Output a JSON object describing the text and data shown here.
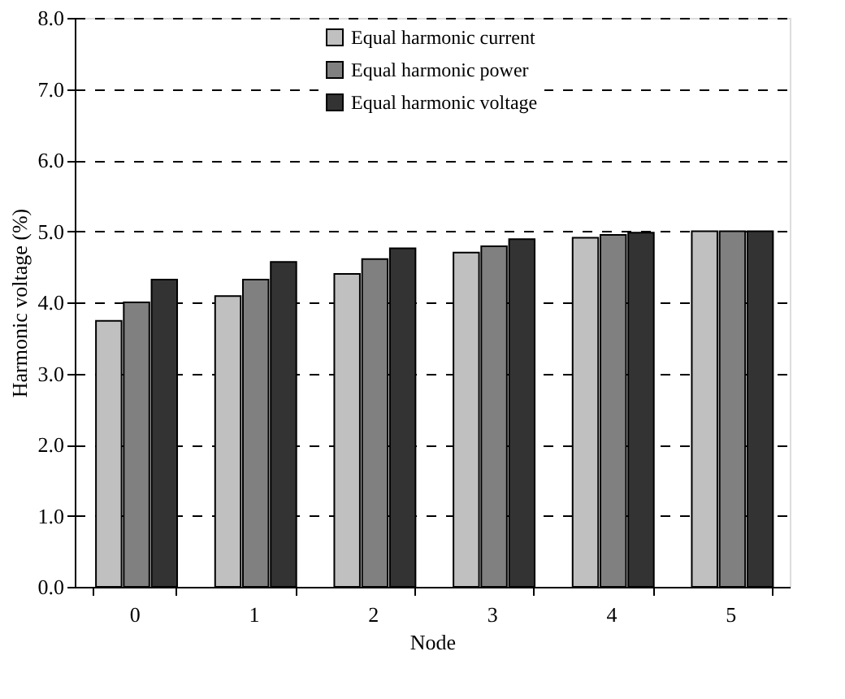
{
  "chart_data": {
    "type": "bar",
    "xlabel": "Node",
    "ylabel": "Harmonic voltage (%)",
    "categories": [
      "0",
      "1",
      "2",
      "3",
      "4",
      "5"
    ],
    "series": [
      {
        "name": "Equal harmonic current",
        "color": "#c0c0c0",
        "values": [
          3.74,
          4.09,
          4.4,
          4.7,
          4.91,
          5.0
        ]
      },
      {
        "name": "Equal harmonic power",
        "color": "#808080",
        "values": [
          4.0,
          4.32,
          4.61,
          4.79,
          4.95,
          5.0
        ]
      },
      {
        "name": "Equal harmonic voltage",
        "color": "#333333",
        "values": [
          4.32,
          4.57,
          4.76,
          4.89,
          4.98,
          5.0
        ]
      }
    ],
    "ylim": [
      0,
      8
    ],
    "yticks": [
      {
        "value": 0,
        "label": "0.0"
      },
      {
        "value": 1,
        "label": "1.0"
      },
      {
        "value": 2,
        "label": "2.0"
      },
      {
        "value": 3,
        "label": "3.0"
      },
      {
        "value": 4,
        "label": "4.0"
      },
      {
        "value": 5,
        "label": "5.0"
      },
      {
        "value": 6,
        "label": "6.0"
      },
      {
        "value": 7,
        "label": "7.0"
      },
      {
        "value": 8,
        "label": "8.0"
      }
    ],
    "grid": "y",
    "line_style": "dashed",
    "legend": "top"
  }
}
